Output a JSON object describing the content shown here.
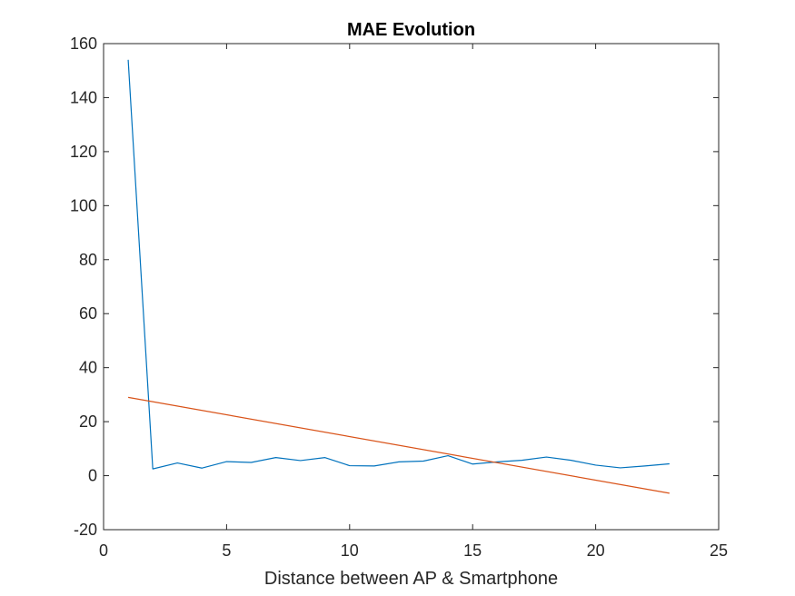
{
  "chart_data": {
    "type": "line",
    "title": "MAE Evolution",
    "xlabel": "Distance between AP & Smartphone",
    "ylabel": "",
    "xlim": [
      0,
      25
    ],
    "ylim": [
      -20,
      160
    ],
    "xticks": [
      0,
      5,
      10,
      15,
      20,
      25
    ],
    "yticks": [
      -20,
      0,
      20,
      40,
      60,
      80,
      100,
      120,
      140,
      160
    ],
    "grid": false,
    "legend": "none",
    "series": [
      {
        "color": "#0072BD",
        "x": [
          1,
          2,
          3,
          4,
          5,
          6,
          7,
          8,
          9,
          10,
          11,
          12,
          13,
          14,
          15,
          16,
          17,
          18,
          19,
          20,
          21,
          22,
          23
        ],
        "y": [
          154,
          2.5,
          4.7,
          2.8,
          5.2,
          4.9,
          6.7,
          5.6,
          6.7,
          3.7,
          3.6,
          5.1,
          5.4,
          7.4,
          4.3,
          5.1,
          5.7,
          6.9,
          5.7,
          3.9,
          2.9,
          3.6,
          4.4
        ]
      },
      {
        "color": "#D95319",
        "x": [
          1,
          23
        ],
        "y": [
          29,
          -6.5
        ]
      }
    ]
  }
}
